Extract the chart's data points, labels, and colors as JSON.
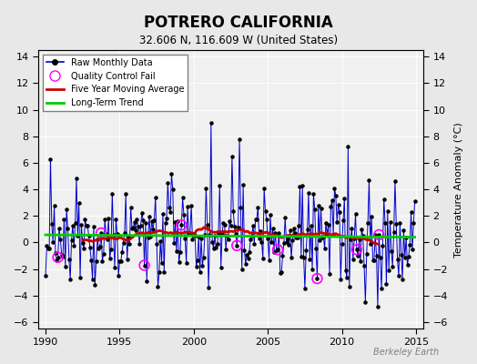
{
  "title": "POTRERO CALIFORNIA",
  "subtitle": "32.606 N, 116.609 W (United States)",
  "ylabel": "Temperature Anomaly (°C)",
  "watermark": "Berkeley Earth",
  "xlim": [
    1989.5,
    2015.5
  ],
  "ylim": [
    -6.5,
    14.5
  ],
  "yticks": [
    -6,
    -4,
    -2,
    0,
    2,
    4,
    6,
    8,
    10,
    12,
    14
  ],
  "xticks": [
    1990,
    1995,
    2000,
    2005,
    2010,
    2015
  ],
  "bg_color": "#e8e8e8",
  "plot_bg_color": "#f0f0f0",
  "raw_color": "#0000cc",
  "moving_avg_color": "#cc0000",
  "trend_color": "#00cc00",
  "qc_fail_color": "#ff00ff",
  "seed": 42
}
